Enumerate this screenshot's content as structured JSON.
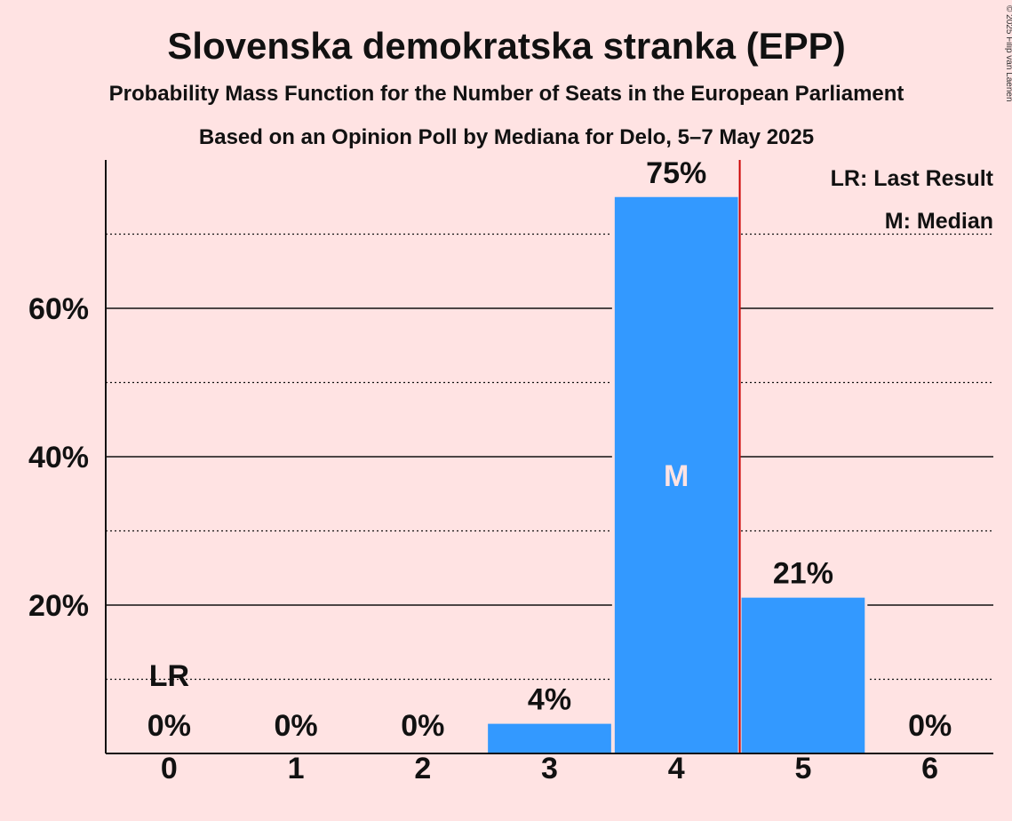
{
  "chart_data": {
    "type": "bar",
    "title": "Slovenska demokratska stranka (EPP)",
    "subtitle": "Probability Mass Function for the Number of Seats in the European Parliament",
    "subtitle2": "Based on an Opinion Poll by Mediana for Delo, 5–7 May 2025",
    "categories": [
      "0",
      "1",
      "2",
      "3",
      "4",
      "5",
      "6"
    ],
    "values": [
      0,
      0,
      0,
      4,
      75,
      21,
      0
    ],
    "value_labels": [
      "0%",
      "0%",
      "0%",
      "4%",
      "75%",
      "21%",
      "0%"
    ],
    "ylim": [
      0,
      80
    ],
    "yticks": [
      20,
      40,
      60
    ],
    "ytick_labels": [
      "20%",
      "40%",
      "60%"
    ],
    "dotted_gridlines": [
      10,
      30,
      50,
      70
    ],
    "last_result_category": "0",
    "last_result_marker": "LR",
    "median_category": "4",
    "median_marker": "M",
    "median_line_after_category": "4",
    "legend": [
      "LR: Last Result",
      "M: Median"
    ],
    "legend_position": "top-right",
    "bar_color": "#3399FF",
    "median_line_color": "#CC0000",
    "background_color": "#FFE3E3"
  },
  "copyright": "© 2025 Filip van Laenen"
}
